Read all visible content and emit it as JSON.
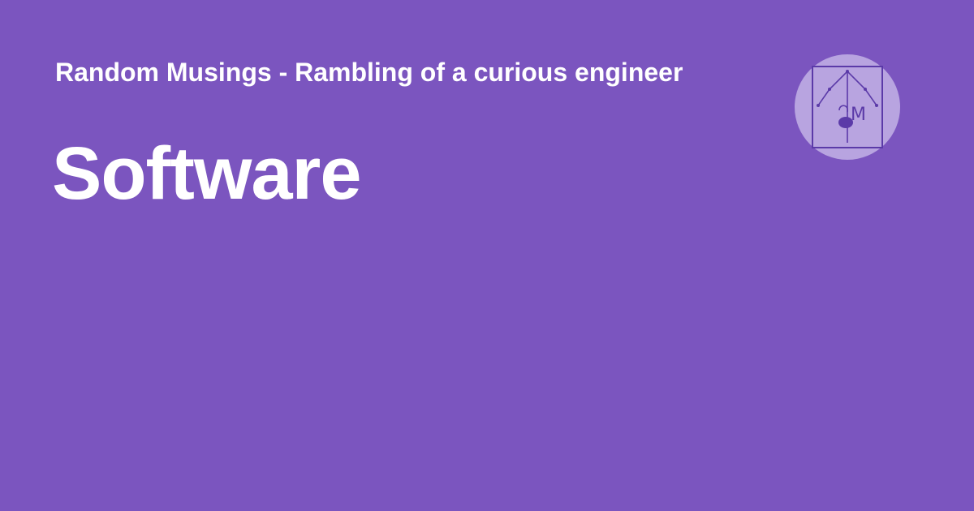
{
  "card": {
    "site_title": "Random Musings - Rambling of a curious engineer",
    "page_title": "Software",
    "logo": {
      "icon": "site-logo-icon",
      "monogram_letter": "M"
    }
  },
  "colors": {
    "background": "#7b55bf",
    "text": "#ffffff",
    "logo_circle": "#b8a4e0",
    "logo_stroke": "#5b3aa8"
  }
}
